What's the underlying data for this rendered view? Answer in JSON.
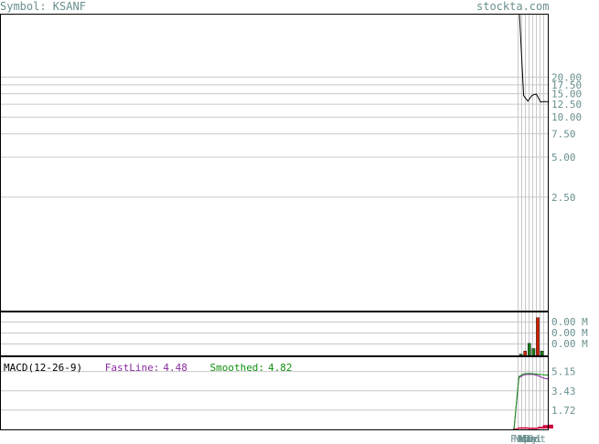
{
  "header": {
    "symbol_label": "Symbol: KSANF",
    "site": "stockta.com"
  },
  "colors": {
    "frame": "#000000",
    "grid": "#c8c8c8",
    "axis_text": "#6a8f8f",
    "price_line": "#000000",
    "volume_up": "#1a7a1a",
    "volume_down": "#d02000",
    "fastline": "#8a2aa0",
    "smoothed": "#109010",
    "histogram": "#d0003a"
  },
  "chart_data": [
    {
      "type": "line",
      "panel": "price",
      "y_ticks": [
        "20.00",
        "17.50",
        "15.00",
        "12.50",
        "10.00",
        "7.50",
        "5.00",
        "2.50"
      ],
      "y_tick_values": [
        20,
        17.5,
        15,
        12.5,
        10,
        7.5,
        5,
        2.5
      ],
      "y_scale": "log",
      "ylim": [
        0.35,
        60
      ],
      "series": [
        {
          "values": [
            60,
            14.5,
            13.2,
            14.6,
            14.9,
            13.0,
            13.1,
            13.0
          ]
        }
      ]
    },
    {
      "type": "bar",
      "panel": "volume",
      "y_ticks": [
        "0.00 M",
        "0.00 M",
        "0.00 M"
      ],
      "ylim": [
        0,
        1
      ],
      "values": [
        0.03,
        0.1,
        0.28,
        0.16,
        0.88,
        0.1
      ],
      "directions": [
        "up",
        "down",
        "up",
        "up",
        "down",
        "up"
      ]
    },
    {
      "type": "line",
      "panel": "macd",
      "label": "MACD(12-26-9)",
      "fastline_label": "FastLine:",
      "fastline_value": "4.48",
      "smoothed_label": "Smoothed:",
      "smoothed_value": "4.82",
      "y_ticks": [
        "5.15",
        "3.43",
        "1.72"
      ],
      "y_tick_values": [
        5.15,
        3.43,
        1.72
      ],
      "ylim": [
        0,
        6.5
      ],
      "series": [
        {
          "name": "FastLine",
          "values": [
            0,
            4.6,
            4.85,
            4.9,
            4.88,
            4.75,
            4.55,
            4.48
          ]
        },
        {
          "name": "Smoothed",
          "values": [
            0,
            4.7,
            4.95,
            4.97,
            4.95,
            4.9,
            4.86,
            4.82
          ]
        }
      ],
      "histogram": [
        0,
        0.1,
        0.1,
        0.07,
        0.07,
        0.15,
        0.3,
        0.34
      ]
    }
  ],
  "x_axis": {
    "labels": [
      "Feb",
      "Mar",
      "Apr",
      "May",
      "Jun",
      "Jul",
      "Oct"
    ]
  }
}
